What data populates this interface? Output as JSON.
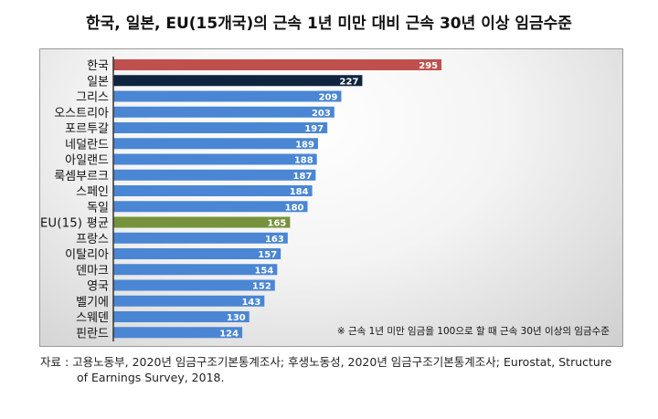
{
  "chart_data": {
    "type": "bar",
    "orientation": "horizontal",
    "title": "한국, 일본, EU(15개국)의 근속 1년 미만 대비 근속 30년 이상 임금수준",
    "categories": [
      "한국",
      "일본",
      "그리스",
      "오스트리아",
      "포르투갈",
      "네덜란드",
      "아일랜드",
      "룩셈부르크",
      "스페인",
      "독일",
      "EU(15) 평균",
      "프랑스",
      "이탈리아",
      "덴마크",
      "영국",
      "벨기에",
      "스웨덴",
      "핀란드"
    ],
    "values": [
      295,
      227,
      209,
      203,
      197,
      189,
      188,
      187,
      184,
      180,
      165,
      163,
      157,
      154,
      152,
      143,
      130,
      124
    ],
    "colors": {
      "korea": "#c0504d",
      "japan": "#0f243e",
      "eu_average": "#76923c",
      "default": "#4a86d4"
    },
    "annotation": "※ 근속 1년 미만 임금을 100으로 할 때 근속 30년 이상의 임금수준",
    "data_labels": true,
    "grid": false
  },
  "source": {
    "line1": "자료 : 고용노동부, 2020년 임금구조기본통계조사; 후생노동성, 2020년 임금구조기본통계조사; Eurostat, Structure",
    "line2": "of Earnings Survey, 2018."
  }
}
